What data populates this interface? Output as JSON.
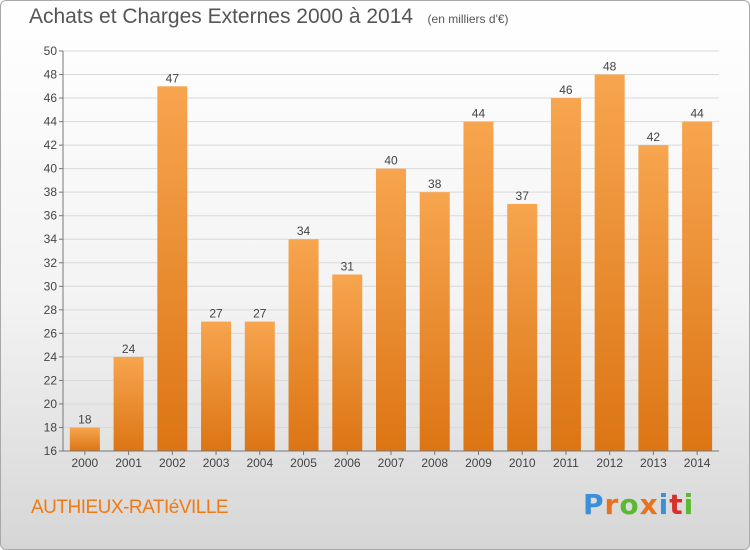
{
  "header": {
    "title": "Achats et Charges Externes 2000 à 2014",
    "unit": "(en milliers d'€)"
  },
  "footer": {
    "commune": "AUTHIEUX-RATIéVILLE",
    "brand": "Proxiti",
    "brand_colors": [
      "#3b8fd8",
      "#e8731c",
      "#5ab831",
      "#e8731c",
      "#3b8fd8",
      "#d6312f",
      "#5ab831"
    ]
  },
  "colors": {
    "bar_light": "#f7a54f",
    "bar_dark": "#dc7514",
    "grid": "#d9d9d9",
    "axis_text": "#444444"
  },
  "chart_data": {
    "type": "bar",
    "categories": [
      "2000",
      "2001",
      "2002",
      "2003",
      "2004",
      "2005",
      "2006",
      "2007",
      "2008",
      "2009",
      "2010",
      "2011",
      "2012",
      "2013",
      "2014"
    ],
    "values": [
      18,
      24,
      47,
      27,
      27,
      34,
      31,
      40,
      38,
      44,
      37,
      46,
      48,
      42,
      44
    ],
    "ylim": [
      16,
      50
    ],
    "yticks": [
      16,
      18,
      20,
      22,
      24,
      26,
      28,
      30,
      32,
      34,
      36,
      38,
      40,
      42,
      44,
      46,
      48,
      50
    ],
    "grid": true,
    "data_labels": true
  }
}
